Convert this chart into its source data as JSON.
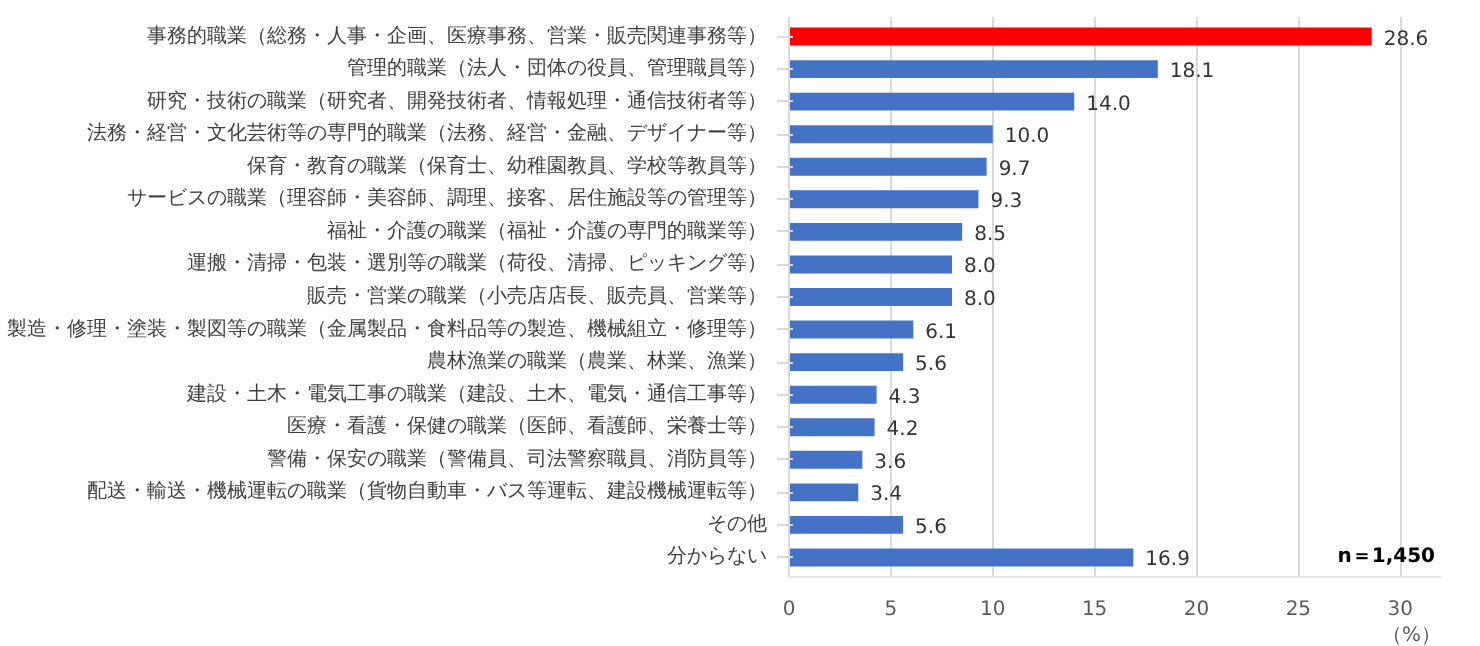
{
  "chart_data": {
    "type": "bar",
    "orientation": "horizontal",
    "categories": [
      "事務的職業（総務・人事・企画、医療事務、営業・販売関連事務等）",
      "管理的職業（法人・団体の役員、管理職員等）",
      "研究・技術の職業（研究者、開発技術者、情報処理・通信技術者等）",
      "法務・経営・文化芸術等の専門的職業（法務、経営・金融、デザイナー等）",
      "保育・教育の職業（保育士、幼稚園教員、学校等教員等）",
      "サービスの職業（理容師・美容師、調理、接客、居住施設等の管理等）",
      "福祉・介護の職業（福祉・介護の専門的職業等）",
      "運搬・清掃・包装・選別等の職業（荷役、清掃、ピッキング等）",
      "販売・営業の職業（小売店店長、販売員、営業等）",
      "製造・修理・塗装・製図等の職業（金属製品・食料品等の製造、機械組立・修理等）",
      "農林漁業の職業（農業、林業、漁業）",
      "建設・土木・電気工事の職業（建設、土木、電気・通信工事等）",
      "医療・看護・保健の職業（医師、看護師、栄養士等）",
      "警備・保安の職業（警備員、司法警察職員、消防員等）",
      "配送・輸送・機械運転の職業（貨物自動車・バス等運転、建設機械運転等）",
      "その他",
      "分からない"
    ],
    "values": [
      28.6,
      18.1,
      14.0,
      10.0,
      9.7,
      9.3,
      8.5,
      8.0,
      8.0,
      6.1,
      5.6,
      4.3,
      4.2,
      3.6,
      3.4,
      5.6,
      16.9
    ],
    "value_labels": [
      "28.6",
      "18.1",
      "14.0",
      "10.0",
      "9.7",
      "9.3",
      "8.5",
      "8.0",
      "8.0",
      "6.1",
      "5.6",
      "4.3",
      "4.2",
      "3.6",
      "3.4",
      "5.6",
      "16.9"
    ],
    "colors": [
      "#ff0000",
      "#4472c4",
      "#4472c4",
      "#4472c4",
      "#4472c4",
      "#4472c4",
      "#4472c4",
      "#4472c4",
      "#4472c4",
      "#4472c4",
      "#4472c4",
      "#4472c4",
      "#4472c4",
      "#4472c4",
      "#4472c4",
      "#4472c4",
      "#4472c4"
    ],
    "xlabel": "（%）",
    "xlim": [
      0,
      32
    ],
    "xticks": [
      0,
      5,
      10,
      15,
      20,
      25,
      30
    ],
    "grid": "x",
    "annotations": [
      "n＝1,450"
    ]
  }
}
